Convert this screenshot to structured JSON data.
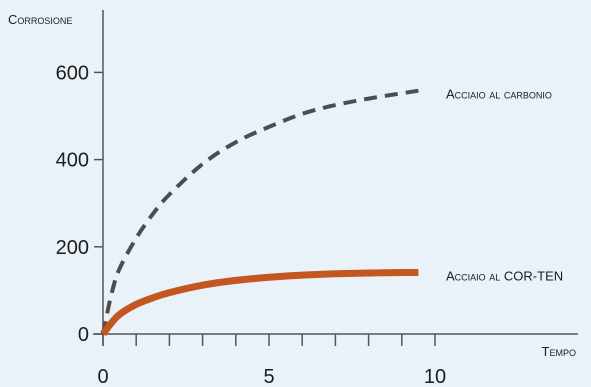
{
  "chart_data": {
    "type": "line",
    "title": "",
    "xlabel": "Tempo",
    "ylabel": "Corrosione",
    "xlim": [
      0,
      13.5
    ],
    "ylim": [
      0,
      750
    ],
    "xticks": [
      0,
      1,
      2,
      3,
      4,
      5,
      6,
      7,
      8,
      9,
      10
    ],
    "xticklabels": [
      "0",
      "5",
      "10"
    ],
    "xticklabel_values": [
      0,
      5,
      10
    ],
    "yticks": [
      0,
      200,
      400,
      600
    ],
    "yticklabels": [
      "0",
      "200",
      "400",
      "600"
    ],
    "grid": false,
    "legend": "inline labels at line ends",
    "series": [
      {
        "name": "Acciaio al carbonio",
        "color": "#4d4d4d",
        "style": "dashed",
        "x": [
          0,
          0.25,
          0.5,
          1,
          1.5,
          2,
          3,
          4,
          5,
          6,
          7,
          8,
          9,
          9.5
        ],
        "y": [
          0,
          90,
          150,
          220,
          275,
          320,
          390,
          440,
          475,
          505,
          525,
          540,
          552,
          558
        ]
      },
      {
        "name": "Acciaio al COR-TEN",
        "color": "#c4561f",
        "style": "solid",
        "x": [
          0,
          0.25,
          0.5,
          1,
          1.5,
          2,
          3,
          4,
          5,
          6,
          7,
          8,
          9,
          9.5
        ],
        "y": [
          0,
          25,
          45,
          68,
          83,
          95,
          112,
          123,
          130,
          135,
          138,
          140,
          141,
          141
        ]
      }
    ]
  }
}
